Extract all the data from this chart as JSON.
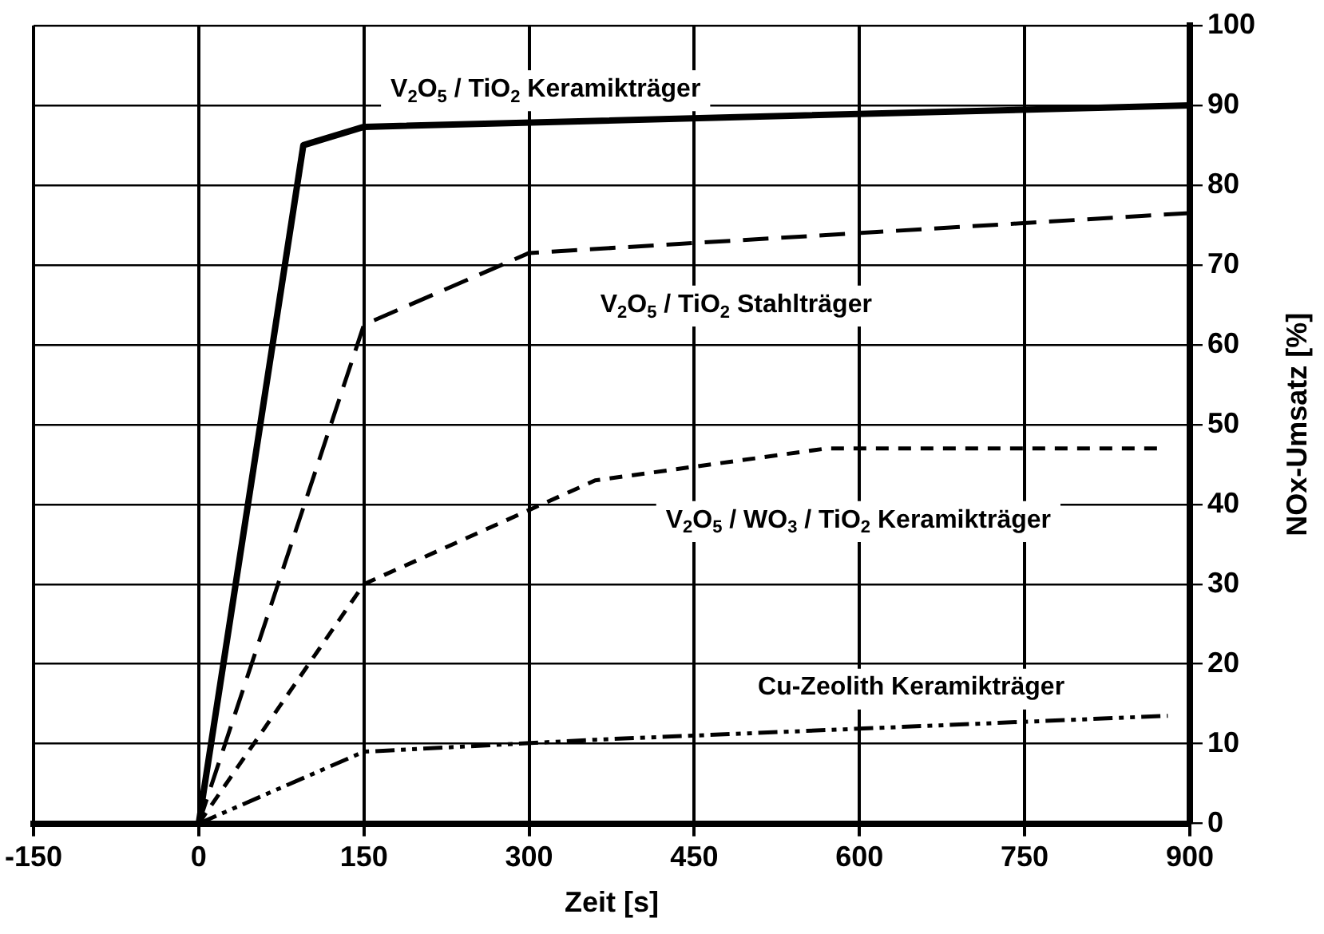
{
  "chart_data": {
    "type": "line",
    "xlabel": "Zeit [s]",
    "ylabel": "NOx-Umsatz [%]",
    "xlim": [
      -150,
      900
    ],
    "xticks": [
      -150,
      0,
      150,
      300,
      450,
      600,
      750,
      900
    ],
    "ylim": [
      0,
      100
    ],
    "yticks": [
      0,
      10,
      20,
      30,
      40,
      50,
      60,
      70,
      80,
      90,
      100
    ],
    "grid": true,
    "legend": false,
    "marker": "none",
    "series": [
      {
        "name": "V$_{2}$O$_{5}$ / TiO$_{2}$ Keramikträger",
        "color": "#000000",
        "line_style": "solid",
        "x": [
          0,
          95,
          150,
          900
        ],
        "values": [
          0,
          85,
          87.3,
          90
        ]
      },
      {
        "name": "V$_{2}$O$_{5}$ / TiO$_{2}$ Stahlträger",
        "color": "#000000",
        "line_style": "dashed",
        "x": [
          0,
          150,
          300,
          900
        ],
        "values": [
          0,
          62.5,
          71.5,
          76.5
        ]
      },
      {
        "name": "V$_{2}$O$_{5}$ / WO$_{3}$ / TiO$_{2}$ Keramikträger",
        "color": "#000000",
        "line_style": "dashed",
        "x": [
          0,
          150,
          360,
          570,
          875
        ],
        "values": [
          0,
          30,
          43,
          47,
          47
        ]
      },
      {
        "name": "Cu-Zeolith Keramikträger",
        "color": "#000000",
        "line_style": "dotted",
        "x": [
          0,
          150,
          360,
          880
        ],
        "values": [
          0,
          9,
          10.5,
          13.5
        ]
      }
    ]
  }
}
